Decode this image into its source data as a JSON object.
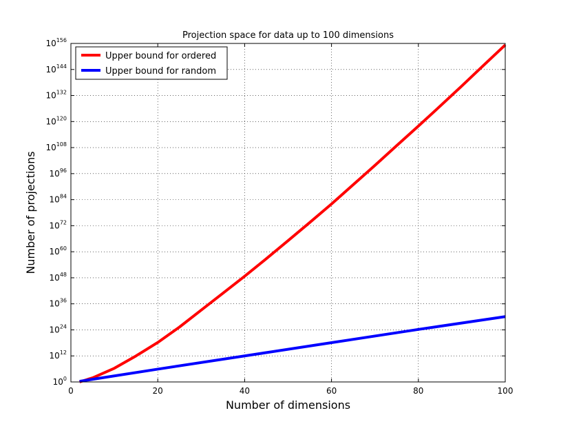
{
  "chart_data": {
    "type": "line",
    "title": "Projection space for data up to 100 dimensions",
    "xlabel": "Number of dimensions",
    "ylabel": "Number of projections",
    "xlim": [
      0,
      100
    ],
    "ylim_log10": [
      0,
      156
    ],
    "y_scale": "log",
    "grid": true,
    "legend_position": "top-left",
    "x_ticks": [
      0,
      20,
      40,
      60,
      80,
      100
    ],
    "y_ticks": [
      {
        "base": "10",
        "exp": "0",
        "value": 0
      },
      {
        "base": "10",
        "exp": "12",
        "value": 12
      },
      {
        "base": "10",
        "exp": "24",
        "value": 24
      },
      {
        "base": "10",
        "exp": "36",
        "value": 36
      },
      {
        "base": "10",
        "exp": "48",
        "value": 48
      },
      {
        "base": "10",
        "exp": "60",
        "value": 60
      },
      {
        "base": "10",
        "exp": "72",
        "value": 72
      },
      {
        "base": "10",
        "exp": "84",
        "value": 84
      },
      {
        "base": "10",
        "exp": "96",
        "value": 96
      },
      {
        "base": "10",
        "exp": "108",
        "value": 108
      },
      {
        "base": "10",
        "exp": "120",
        "value": 120
      },
      {
        "base": "10",
        "exp": "132",
        "value": 132
      },
      {
        "base": "10",
        "exp": "144",
        "value": 144
      },
      {
        "base": "10",
        "exp": "156",
        "value": 156
      }
    ],
    "series": [
      {
        "name": "Upper bound for ordered",
        "color": "#ff0000",
        "x": [
          2,
          5,
          10,
          15,
          20,
          25,
          30,
          35,
          40,
          45,
          50,
          55,
          60,
          65,
          70,
          75,
          80,
          85,
          90,
          95,
          100
        ],
        "y_log10": [
          0,
          1.9,
          6.3,
          12,
          18.2,
          25.3,
          33.1,
          40.9,
          48.7,
          56.8,
          65.1,
          73.5,
          82.0,
          90.9,
          99.8,
          108.9,
          117.9,
          127.1,
          136.4,
          145.9,
          155.3
        ]
      },
      {
        "name": "Upper bound for random",
        "color": "#0000ff",
        "x": [
          2,
          20,
          40,
          60,
          80,
          100
        ],
        "y_log10": [
          0.3,
          5.9,
          12,
          18.1,
          24.2,
          30.1
        ]
      }
    ]
  }
}
